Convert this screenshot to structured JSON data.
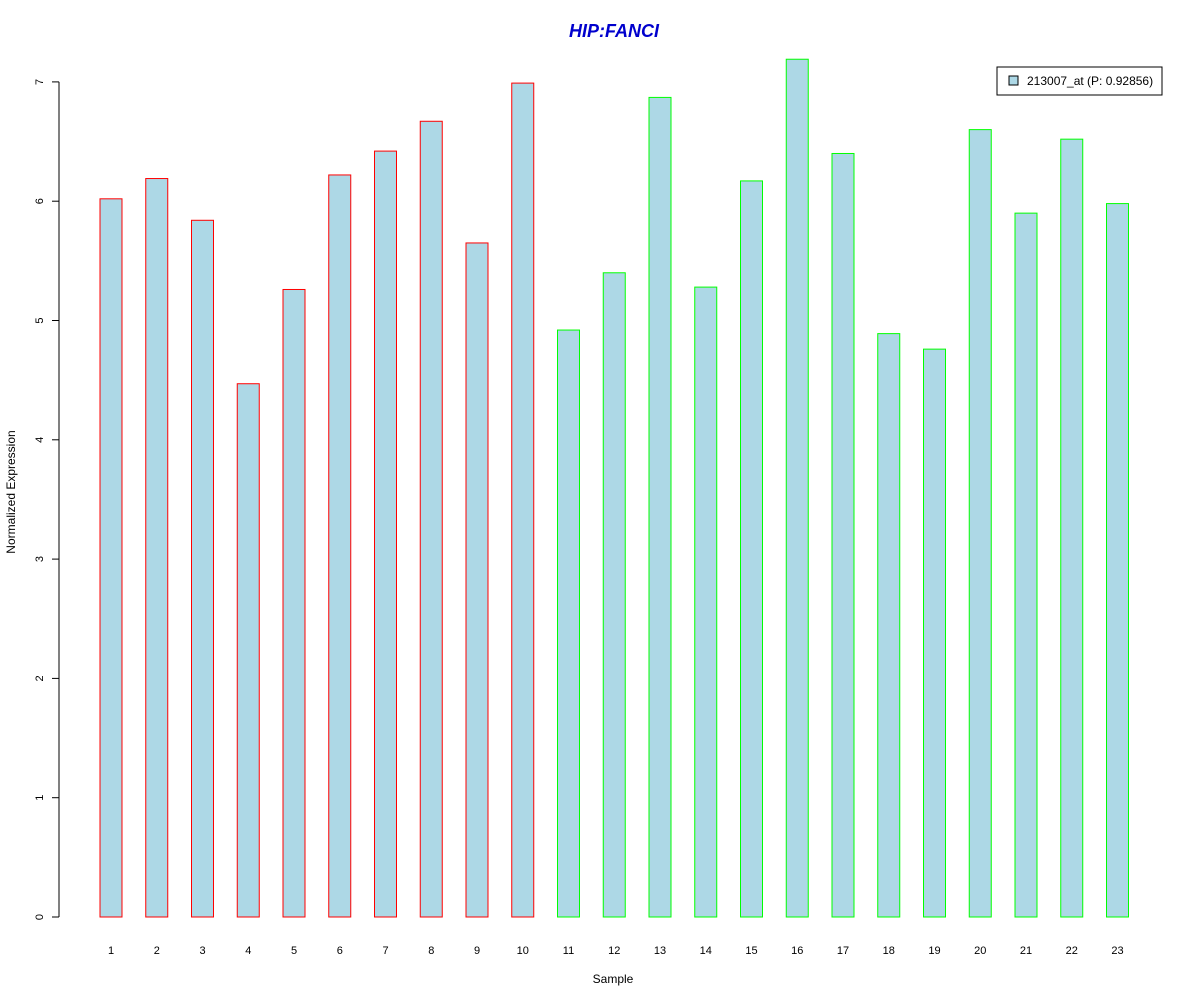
{
  "chart_data": {
    "type": "bar",
    "title": "HIP:FANCI",
    "xlabel": "Sample",
    "ylabel": "Normalized Expression",
    "ylim": [
      0,
      7.2
    ],
    "yticks": [
      0,
      1,
      2,
      3,
      4,
      5,
      6,
      7
    ],
    "categories": [
      "1",
      "2",
      "3",
      "4",
      "5",
      "6",
      "7",
      "8",
      "9",
      "10",
      "11",
      "12",
      "13",
      "14",
      "15",
      "16",
      "17",
      "18",
      "19",
      "20",
      "21",
      "22",
      "23"
    ],
    "series": [
      {
        "name": "213007_at (P: 0.92856)",
        "values": [
          6.02,
          6.19,
          5.84,
          4.47,
          5.26,
          6.22,
          6.42,
          6.67,
          5.65,
          6.99,
          4.92,
          5.4,
          6.87,
          5.28,
          6.17,
          7.19,
          6.4,
          4.89,
          4.76,
          6.6,
          5.9,
          6.52,
          5.98
        ]
      }
    ],
    "groups": [
      {
        "samples": [
          1,
          10
        ],
        "border_color": "#ff0000"
      },
      {
        "samples": [
          11,
          23
        ],
        "border_color": "#00ff00"
      }
    ],
    "bar_fill_color": "#add8e6",
    "title_color": "#0000cd",
    "grid": false,
    "legend_position": "top-right"
  }
}
